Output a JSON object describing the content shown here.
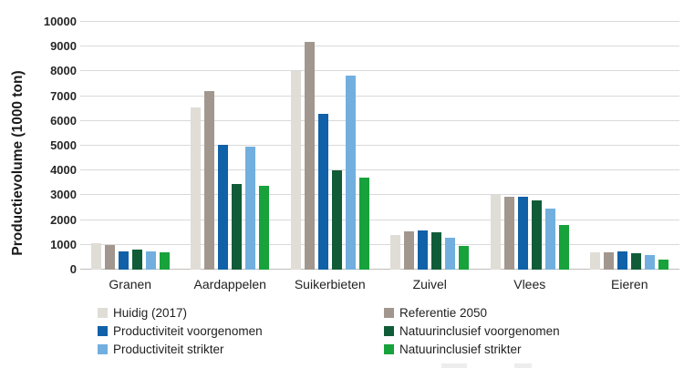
{
  "chart_data": {
    "type": "bar",
    "title": "",
    "xlabel": "",
    "ylabel": "Productievolume (1000 ton)",
    "ylim": [
      0,
      10000
    ],
    "ytick_step": 1000,
    "yticks": [
      10000,
      9000,
      8000,
      7000,
      6000,
      5000,
      4000,
      3000,
      2000,
      1000,
      0
    ],
    "grid": true,
    "legend_position": "bottom",
    "legend_columns": 2,
    "categories": [
      "Granen",
      "Aardappelen",
      "Suikerbieten",
      "Zuivel",
      "Vlees",
      "Eieren"
    ],
    "series": [
      {
        "name": "Huidig (2017)",
        "color": "#e0ddd7",
        "values": [
          1050,
          6550,
          8000,
          1400,
          3000,
          700
        ]
      },
      {
        "name": "Referentie 2050",
        "color": "#a1978f",
        "values": [
          1000,
          7200,
          9200,
          1550,
          2950,
          710
        ]
      },
      {
        "name": "Productiviteit voorgenomen",
        "color": "#1061a8",
        "values": [
          720,
          5050,
          6300,
          1600,
          2950,
          730
        ]
      },
      {
        "name": "Natuurinclusief voorgenomen",
        "color": "#115c38",
        "values": [
          800,
          3450,
          4000,
          1500,
          2800,
          670
        ]
      },
      {
        "name": "Productiviteit strikter",
        "color": "#72afde",
        "values": [
          740,
          4950,
          7850,
          1300,
          2450,
          580
        ]
      },
      {
        "name": "Natuurinclusief strikter",
        "color": "#17a23b",
        "values": [
          700,
          3400,
          3700,
          950,
          1800,
          400
        ]
      }
    ],
    "colors": {
      "gridline": "#d9d9d9",
      "baseline": "#bfbdba",
      "text": "#1f1f1f"
    }
  }
}
